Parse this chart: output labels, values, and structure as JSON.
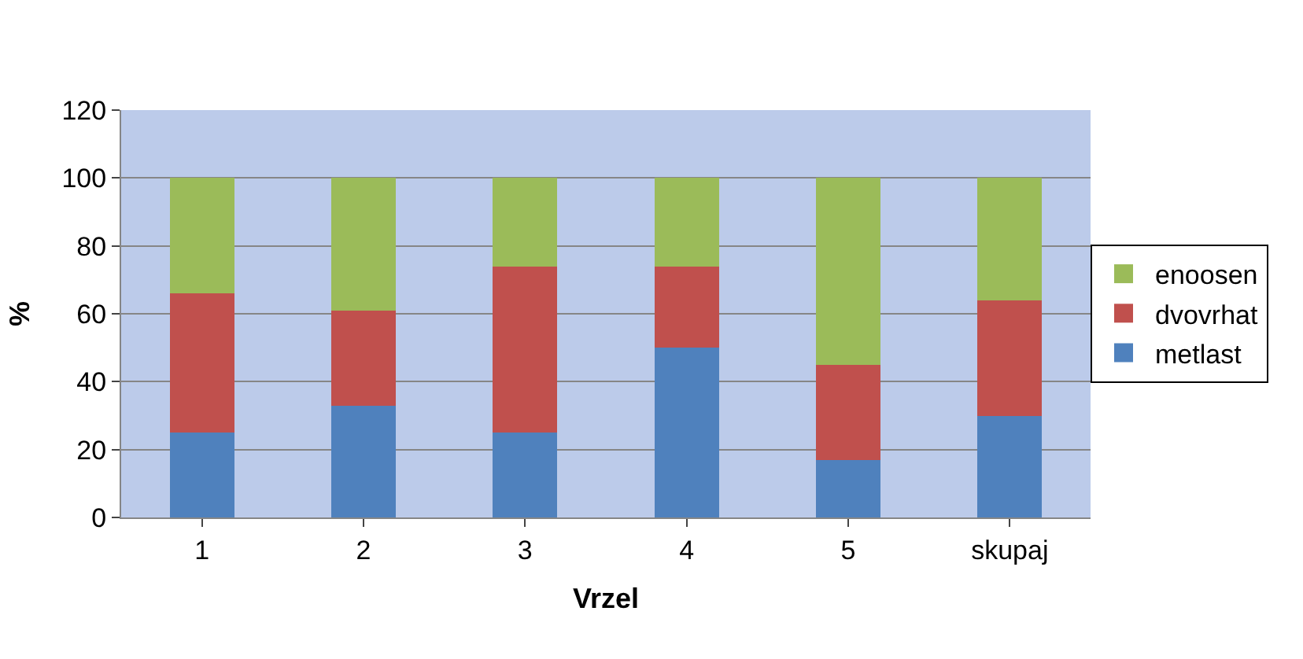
{
  "chart_data": {
    "type": "bar",
    "stacked": true,
    "xlabel": "Vrzel",
    "ylabel": "%",
    "categories": [
      "1",
      "2",
      "3",
      "4",
      "5",
      "skupaj"
    ],
    "series": [
      {
        "name": "metlast",
        "color": "#4f81bd",
        "values": [
          25,
          33,
          25,
          50,
          17,
          30
        ]
      },
      {
        "name": "dvovrhat",
        "color": "#c0504d",
        "values": [
          41,
          28,
          49,
          24,
          28,
          34
        ]
      },
      {
        "name": "enoosen",
        "color": "#9bbb59",
        "values": [
          34,
          39,
          26,
          26,
          55,
          36
        ]
      }
    ],
    "ylim": [
      0,
      120
    ],
    "yticks": [
      0,
      20,
      40,
      60,
      80,
      100,
      120
    ],
    "grid": "y",
    "legend": "right"
  }
}
